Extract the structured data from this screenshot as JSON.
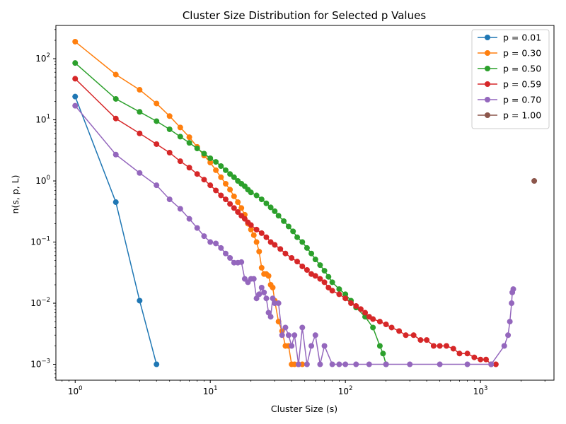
{
  "chart_data": {
    "type": "line",
    "title": "Cluster Size Distribution for Selected p Values",
    "xlabel": "Cluster Size (s)",
    "ylabel": "n(s, p, L)",
    "xscale": "log",
    "yscale": "log",
    "xlim": [
      0.72,
      3500
    ],
    "ylim": [
      0.00055,
      350
    ],
    "x_ticks": [
      {
        "value": 1,
        "base": "10",
        "exp": "0"
      },
      {
        "value": 10,
        "base": "10",
        "exp": "1"
      },
      {
        "value": 100,
        "base": "10",
        "exp": "2"
      },
      {
        "value": 1000,
        "base": "10",
        "exp": "3"
      }
    ],
    "y_ticks": [
      {
        "value": 0.001,
        "base": "10",
        "exp": "−3"
      },
      {
        "value": 0.01,
        "base": "10",
        "exp": "−2"
      },
      {
        "value": 0.1,
        "base": "10",
        "exp": "−1"
      },
      {
        "value": 1,
        "base": "10",
        "exp": "0"
      },
      {
        "value": 10,
        "base": "10",
        "exp": "1"
      },
      {
        "value": 100,
        "base": "10",
        "exp": "2"
      }
    ],
    "legend_position": "top-right",
    "grid": false,
    "series": [
      {
        "name": "p = 0.01",
        "color": "#1f77b4",
        "x": [
          1,
          2,
          3,
          4
        ],
        "y": [
          24,
          0.45,
          0.011,
          0.001
        ]
      },
      {
        "name": "p = 0.30",
        "color": "#ff7f0e",
        "x": [
          1,
          2,
          3,
          4,
          5,
          6,
          7,
          8,
          9,
          10,
          11,
          12,
          13,
          14,
          15,
          16,
          17,
          18,
          19,
          20,
          21,
          22,
          23,
          24,
          25,
          26,
          27,
          28,
          29,
          30,
          32,
          34,
          36,
          38,
          40,
          42,
          45,
          48
        ],
        "y": [
          190,
          55,
          31,
          18.5,
          11.5,
          7.5,
          5.2,
          3.6,
          2.6,
          2.0,
          1.5,
          1.15,
          0.9,
          0.72,
          0.56,
          0.45,
          0.36,
          0.28,
          0.2,
          0.16,
          0.13,
          0.1,
          0.07,
          0.038,
          0.03,
          0.03,
          0.028,
          0.02,
          0.018,
          0.011,
          0.005,
          0.0035,
          0.002,
          0.002,
          0.001,
          0.001,
          0.001,
          0.001
        ]
      },
      {
        "name": "p = 0.50",
        "color": "#2ca02c",
        "x": [
          1,
          2,
          3,
          4,
          5,
          6,
          7,
          8,
          9,
          10,
          11,
          12,
          13,
          14,
          15,
          16,
          17,
          18,
          19,
          20,
          22,
          24,
          26,
          28,
          30,
          32,
          35,
          38,
          41,
          44,
          48,
          52,
          56,
          60,
          65,
          70,
          75,
          80,
          90,
          100,
          110,
          120,
          140,
          160,
          180,
          190,
          200
        ],
        "y": [
          85,
          22,
          13.5,
          9.5,
          7,
          5.3,
          4.2,
          3.4,
          2.8,
          2.35,
          2.05,
          1.75,
          1.5,
          1.3,
          1.15,
          1.0,
          0.9,
          0.82,
          0.72,
          0.65,
          0.58,
          0.5,
          0.43,
          0.37,
          0.32,
          0.27,
          0.22,
          0.18,
          0.15,
          0.12,
          0.1,
          0.08,
          0.065,
          0.052,
          0.042,
          0.034,
          0.027,
          0.022,
          0.017,
          0.014,
          0.011,
          0.0085,
          0.006,
          0.004,
          0.002,
          0.0015,
          0.001
        ]
      },
      {
        "name": "p = 0.59",
        "color": "#d62728",
        "x": [
          1,
          2,
          3,
          4,
          5,
          6,
          7,
          8,
          9,
          10,
          11,
          12,
          13,
          14,
          15,
          16,
          17,
          18,
          19,
          20,
          22,
          24,
          26,
          28,
          30,
          33,
          36,
          40,
          44,
          48,
          52,
          56,
          60,
          65,
          70,
          75,
          80,
          90,
          100,
          110,
          120,
          130,
          140,
          150,
          160,
          180,
          200,
          220,
          250,
          280,
          320,
          360,
          400,
          450,
          500,
          560,
          630,
          700,
          800,
          900,
          1000,
          1100,
          1200,
          1300
        ],
        "y": [
          47,
          10.5,
          6.0,
          4.0,
          2.9,
          2.1,
          1.65,
          1.3,
          1.05,
          0.85,
          0.7,
          0.58,
          0.5,
          0.42,
          0.36,
          0.31,
          0.27,
          0.24,
          0.21,
          0.19,
          0.16,
          0.14,
          0.12,
          0.1,
          0.09,
          0.077,
          0.065,
          0.055,
          0.048,
          0.04,
          0.035,
          0.03,
          0.028,
          0.025,
          0.022,
          0.018,
          0.016,
          0.014,
          0.012,
          0.01,
          0.009,
          0.008,
          0.007,
          0.006,
          0.0055,
          0.005,
          0.0045,
          0.004,
          0.0035,
          0.003,
          0.003,
          0.0025,
          0.0025,
          0.002,
          0.002,
          0.002,
          0.0018,
          0.0015,
          0.0015,
          0.0013,
          0.0012,
          0.0012,
          0.001,
          0.001
        ]
      },
      {
        "name": "p = 0.70",
        "color": "#9467bd",
        "x": [
          1,
          2,
          3,
          4,
          5,
          6,
          7,
          8,
          9,
          10,
          11,
          12,
          13,
          14,
          15,
          16,
          17,
          18,
          19,
          20,
          21,
          22,
          23,
          24,
          25,
          26,
          27,
          28,
          29,
          30,
          32,
          34,
          36,
          38,
          40,
          42,
          45,
          48,
          52,
          56,
          60,
          65,
          70,
          80,
          90,
          100,
          120,
          150,
          200,
          300,
          500,
          800,
          1200,
          1500,
          1600,
          1650,
          1700,
          1720,
          1750
        ],
        "y": [
          17,
          2.7,
          1.35,
          0.85,
          0.5,
          0.35,
          0.24,
          0.17,
          0.125,
          0.1,
          0.095,
          0.08,
          0.065,
          0.055,
          0.046,
          0.046,
          0.047,
          0.025,
          0.022,
          0.025,
          0.025,
          0.012,
          0.014,
          0.018,
          0.015,
          0.012,
          0.007,
          0.006,
          0.012,
          0.01,
          0.01,
          0.003,
          0.004,
          0.003,
          0.002,
          0.003,
          0.001,
          0.004,
          0.001,
          0.002,
          0.003,
          0.001,
          0.002,
          0.001,
          0.001,
          0.001,
          0.001,
          0.001,
          0.001,
          0.001,
          0.001,
          0.001,
          0.001,
          0.002,
          0.003,
          0.005,
          0.01,
          0.015,
          0.017
        ]
      },
      {
        "name": "p = 1.00",
        "color": "#8c564b",
        "x": [
          2500
        ],
        "y": [
          1
        ]
      }
    ]
  }
}
